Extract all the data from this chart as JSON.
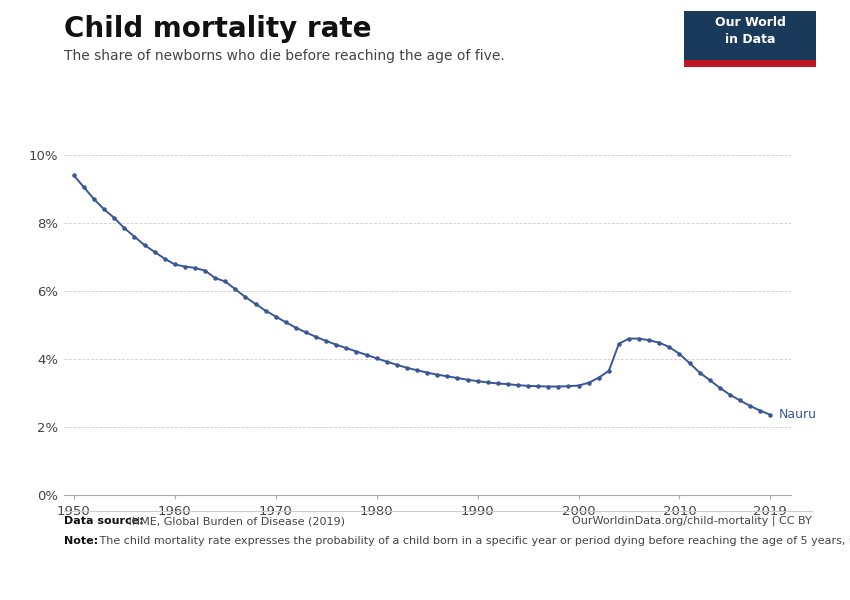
{
  "title": "Child mortality rate",
  "subtitle": "The share of newborns who die before reaching the age of five.",
  "line_color": "#3a5795",
  "background_color": "#ffffff",
  "marker_color": "#3a5795",
  "grid_color": "#d0d0d0",
  "ylim": [
    0,
    0.105
  ],
  "xlim": [
    1949,
    2021
  ],
  "yticks": [
    0,
    0.02,
    0.04,
    0.06,
    0.08,
    0.1
  ],
  "ytick_labels": [
    "0%",
    "2%",
    "4%",
    "6%",
    "8%",
    "10%"
  ],
  "xticks": [
    1950,
    1960,
    1970,
    1980,
    1990,
    2000,
    2010,
    2019
  ],
  "label_text": "Nauru",
  "datasource_bold": "Data source:",
  "datasource_text": " IHME, Global Burden of Disease (2019)",
  "url_text": "OurWorldinData.org/child-mortality | CC BY",
  "note_bold": "Note:",
  "note_text": " The child mortality rate expresses the probability of a child born in a specific year or period dying before reaching the age of 5 years, if subject to age-specific mortality rates of that period. This is given as the share of live births.",
  "owid_box_color": "#1a3a5c",
  "owid_box_red": "#be1522",
  "years": [
    1950,
    1951,
    1952,
    1953,
    1954,
    1955,
    1956,
    1957,
    1958,
    1959,
    1960,
    1961,
    1962,
    1963,
    1964,
    1965,
    1966,
    1967,
    1968,
    1969,
    1970,
    1971,
    1972,
    1973,
    1974,
    1975,
    1976,
    1977,
    1978,
    1979,
    1980,
    1981,
    1982,
    1983,
    1984,
    1985,
    1986,
    1987,
    1988,
    1989,
    1990,
    1991,
    1992,
    1993,
    1994,
    1995,
    1996,
    1997,
    1998,
    1999,
    2000,
    2001,
    2002,
    2003,
    2004,
    2005,
    2006,
    2007,
    2008,
    2009,
    2010,
    2011,
    2012,
    2013,
    2014,
    2015,
    2016,
    2017,
    2018,
    2019
  ],
  "values": [
    0.094,
    0.0905,
    0.087,
    0.084,
    0.0815,
    0.0785,
    0.076,
    0.0735,
    0.0715,
    0.0695,
    0.0678,
    0.0672,
    0.0668,
    0.066,
    0.0638,
    0.0628,
    0.0605,
    0.0582,
    0.0562,
    0.0542,
    0.0525,
    0.0508,
    0.0492,
    0.0478,
    0.0465,
    0.0453,
    0.0442,
    0.0432,
    0.0422,
    0.0412,
    0.0402,
    0.0392,
    0.0383,
    0.0374,
    0.0367,
    0.036,
    0.0354,
    0.0349,
    0.0344,
    0.0339,
    0.0335,
    0.0331,
    0.0328,
    0.0326,
    0.0323,
    0.0321,
    0.032,
    0.0319,
    0.0319,
    0.032,
    0.0322,
    0.033,
    0.0345,
    0.0365,
    0.0445,
    0.046,
    0.046,
    0.0455,
    0.0448,
    0.0435,
    0.0415,
    0.0388,
    0.036,
    0.0338,
    0.0315,
    0.0295,
    0.0278,
    0.0262,
    0.0248,
    0.0236
  ]
}
